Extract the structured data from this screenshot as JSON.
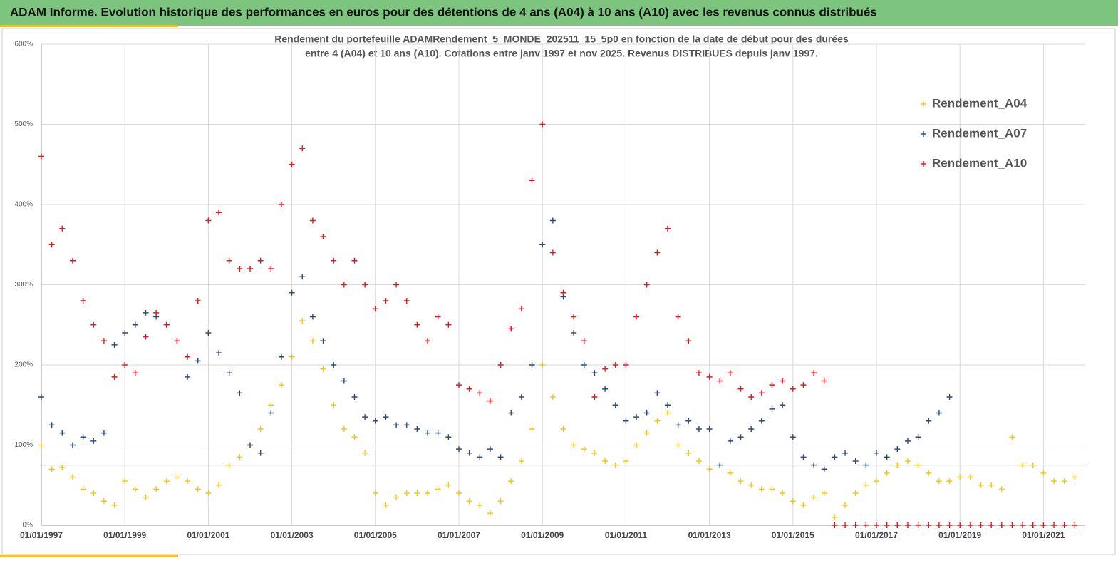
{
  "chart_data": {
    "type": "scatter",
    "title": "ADAM Informe. Evolution historique des performances en euros pour des détentions de 4 ans (A04) à 10 ans (A10) avec les revenus connus distribués",
    "subtitle": [
      "Rendement du portefeuille ADAMRendement_5_MONDE_202511_15_5p0  en fonction de la date de début pour des durées",
      "entre 4 (A04) et 10 ans (A10). Cotations  entre janv 1997 et nov 2025. Revenus DISTRIBUES depuis janv 1997."
    ],
    "xlim": [
      1997,
      2022
    ],
    "xticks": [
      {
        "value": 1997,
        "label": "01/01/1997"
      },
      {
        "value": 1999,
        "label": "01/01/1999"
      },
      {
        "value": 2001,
        "label": "01/01/2001"
      },
      {
        "value": 2003,
        "label": "01/01/2003"
      },
      {
        "value": 2005,
        "label": "01/01/2005"
      },
      {
        "value": 2007,
        "label": "01/01/2007"
      },
      {
        "value": 2009,
        "label": "01/01/2009"
      },
      {
        "value": 2011,
        "label": "01/01/2011"
      },
      {
        "value": 2013,
        "label": "01/01/2013"
      },
      {
        "value": 2015,
        "label": "01/01/2015"
      },
      {
        "value": 2017,
        "label": "01/01/2017"
      },
      {
        "value": 2019,
        "label": "01/01/2019"
      },
      {
        "value": 2021,
        "label": "01/01/2021"
      }
    ],
    "ylim": [
      0,
      600
    ],
    "yticks": [
      {
        "value": 0,
        "label": "0%"
      },
      {
        "value": 100,
        "label": "100%"
      },
      {
        "value": 200,
        "label": "200%"
      },
      {
        "value": 300,
        "label": "300%"
      },
      {
        "value": 400,
        "label": "400%"
      },
      {
        "value": 500,
        "label": "500%"
      },
      {
        "value": 600,
        "label": "600%"
      }
    ],
    "grid": true,
    "hline": 75,
    "legend": "right",
    "series": [
      {
        "name": "Rendement_A04",
        "color": "#f5c518",
        "x": [
          1997,
          1997.25,
          1997.5,
          1997.75,
          1998,
          1998.25,
          1998.5,
          1998.75,
          1999,
          1999.25,
          1999.5,
          1999.75,
          2000,
          2000.25,
          2000.5,
          2000.75,
          2001,
          2001.25,
          2001.5,
          2001.75,
          2002,
          2002.25,
          2002.5,
          2002.75,
          2003,
          2003.25,
          2003.5,
          2003.75,
          2004,
          2004.25,
          2004.5,
          2004.75,
          2005,
          2005.25,
          2005.5,
          2005.75,
          2006,
          2006.25,
          2006.5,
          2006.75,
          2007,
          2007.25,
          2007.5,
          2007.75,
          2008,
          2008.25,
          2008.5,
          2008.75,
          2009,
          2009.25,
          2009.5,
          2009.75,
          2010,
          2010.25,
          2010.5,
          2010.75,
          2011,
          2011.25,
          2011.5,
          2011.75,
          2012,
          2012.25,
          2012.5,
          2012.75,
          2013,
          2013.25,
          2013.5,
          2013.75,
          2014,
          2014.25,
          2014.5,
          2014.75,
          2015,
          2015.25,
          2015.5,
          2015.75,
          2016,
          2016.25,
          2016.5,
          2016.75,
          2017,
          2017.25,
          2017.5,
          2017.75,
          2018,
          2018.25,
          2018.5,
          2018.75,
          2019,
          2019.25,
          2019.5,
          2019.75,
          2020,
          2020.25,
          2020.5,
          2020.75,
          2021,
          2021.25,
          2021.5,
          2021.75
        ],
        "values": [
          100,
          70,
          72,
          60,
          45,
          40,
          30,
          25,
          55,
          45,
          35,
          45,
          55,
          60,
          55,
          45,
          40,
          50,
          75,
          85,
          100,
          120,
          150,
          175,
          210,
          255,
          230,
          195,
          150,
          120,
          110,
          90,
          40,
          25,
          35,
          40,
          40,
          40,
          45,
          50,
          40,
          30,
          25,
          15,
          30,
          55,
          80,
          120,
          200,
          160,
          120,
          100,
          95,
          90,
          80,
          75,
          80,
          100,
          115,
          130,
          140,
          100,
          90,
          80,
          70,
          75,
          65,
          55,
          50,
          45,
          45,
          40,
          30,
          25,
          35,
          40,
          10,
          25,
          40,
          50,
          55,
          65,
          75,
          80,
          75,
          65,
          55,
          55,
          60,
          60,
          50,
          50,
          45,
          110,
          75,
          75,
          65,
          55,
          55,
          60
        ]
      },
      {
        "name": "Rendement_A07",
        "color": "#2f4a7a",
        "x": [
          1997,
          1997.25,
          1997.5,
          1997.75,
          1998,
          1998.25,
          1998.5,
          1998.75,
          1999,
          1999.25,
          1999.5,
          1999.75,
          2000,
          2000.25,
          2000.5,
          2000.75,
          2001,
          2001.25,
          2001.5,
          2001.75,
          2002,
          2002.25,
          2002.5,
          2002.75,
          2003,
          2003.25,
          2003.5,
          2003.75,
          2004,
          2004.25,
          2004.5,
          2004.75,
          2005,
          2005.25,
          2005.5,
          2005.75,
          2006,
          2006.25,
          2006.5,
          2006.75,
          2007,
          2007.25,
          2007.5,
          2007.75,
          2008,
          2008.25,
          2008.5,
          2008.75,
          2009,
          2009.25,
          2009.5,
          2009.75,
          2010,
          2010.25,
          2010.5,
          2010.75,
          2011,
          2011.25,
          2011.5,
          2011.75,
          2012,
          2012.25,
          2012.5,
          2012.75,
          2013,
          2013.25,
          2013.5,
          2013.75,
          2014,
          2014.25,
          2014.5,
          2014.75,
          2015,
          2015.25,
          2015.5,
          2015.75,
          2016,
          2016.25,
          2016.5,
          2016.75,
          2017,
          2017.25,
          2017.5,
          2017.75,
          2018,
          2018.25,
          2018.5,
          2018.75
        ],
        "values": [
          160,
          125,
          115,
          100,
          110,
          105,
          115,
          225,
          240,
          250,
          265,
          260,
          250,
          230,
          185,
          205,
          240,
          215,
          190,
          165,
          100,
          90,
          140,
          210,
          290,
          310,
          260,
          230,
          200,
          180,
          160,
          135,
          130,
          135,
          125,
          125,
          120,
          115,
          115,
          110,
          95,
          90,
          85,
          95,
          85,
          140,
          160,
          200,
          350,
          380,
          285,
          240,
          200,
          190,
          170,
          150,
          130,
          135,
          140,
          165,
          150,
          125,
          130,
          120,
          120,
          75,
          105,
          110,
          120,
          130,
          145,
          150,
          110,
          85,
          75,
          70,
          85,
          90,
          80,
          75,
          90,
          85,
          95,
          105,
          110,
          130,
          140,
          160
        ]
      },
      {
        "name": "Rendement_A10",
        "color": "#e8141c",
        "x": [
          1997,
          1997.25,
          1997.5,
          1997.75,
          1998,
          1998.25,
          1998.5,
          1998.75,
          1999,
          1999.25,
          1999.5,
          1999.75,
          2000,
          2000.25,
          2000.5,
          2000.75,
          2001,
          2001.25,
          2001.5,
          2001.75,
          2002,
          2002.25,
          2002.5,
          2002.75,
          2003,
          2003.25,
          2003.5,
          2003.75,
          2004,
          2004.25,
          2004.5,
          2004.75,
          2005,
          2005.25,
          2005.5,
          2005.75,
          2006,
          2006.25,
          2006.5,
          2006.75,
          2007,
          2007.25,
          2007.5,
          2007.75,
          2008,
          2008.25,
          2008.5,
          2008.75,
          2009,
          2009.25,
          2009.5,
          2009.75,
          2010,
          2010.25,
          2010.5,
          2010.75,
          2011,
          2011.25,
          2011.5,
          2011.75,
          2012,
          2012.25,
          2012.5,
          2012.75,
          2013,
          2013.25,
          2013.5,
          2013.75,
          2014,
          2014.25,
          2014.5,
          2014.75,
          2015,
          2015.25,
          2015.5,
          2015.75,
          2016,
          2016.25,
          2016.5,
          2016.75,
          2017,
          2017.25,
          2017.5,
          2017.75,
          2018,
          2018.25,
          2018.5,
          2018.75,
          2019,
          2019.25,
          2019.5,
          2019.75,
          2020,
          2020.25,
          2020.5,
          2020.75,
          2021,
          2021.25,
          2021.5,
          2021.75
        ],
        "values": [
          460,
          350,
          370,
          330,
          280,
          250,
          230,
          185,
          200,
          190,
          235,
          265,
          250,
          230,
          210,
          280,
          380,
          390,
          330,
          320,
          320,
          330,
          320,
          400,
          450,
          470,
          380,
          360,
          330,
          300,
          330,
          300,
          270,
          280,
          300,
          280,
          250,
          230,
          260,
          250,
          175,
          170,
          165,
          155,
          200,
          245,
          270,
          430,
          500,
          340,
          290,
          260,
          230,
          160,
          195,
          200,
          200,
          260,
          300,
          340,
          370,
          260,
          230,
          190,
          185,
          180,
          190,
          170,
          160,
          165,
          175,
          180,
          170,
          175,
          190,
          180,
          0,
          0,
          0,
          0,
          0,
          0,
          0,
          0,
          0,
          0,
          0,
          0,
          0,
          0,
          0,
          0,
          0,
          0,
          0,
          0,
          0,
          0,
          0,
          0
        ]
      }
    ]
  }
}
